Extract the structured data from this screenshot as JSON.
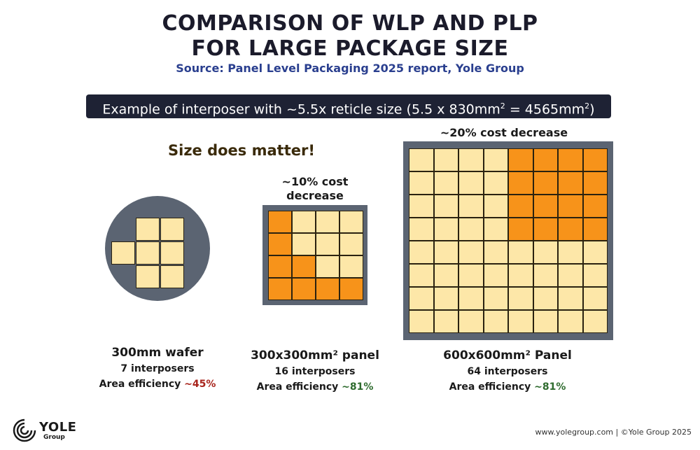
{
  "header": {
    "title_line1": "COMPARISON OF WLP AND PLP",
    "title_line2": "FOR LARGE PACKAGE SIZE",
    "source": "Source: Panel Level Packaging 2025 report, Yole Group"
  },
  "banner": {
    "text_pre": "Example of interposer with ~5.5x reticle size (5.5 x 830mm",
    "sup1": "2",
    "text_mid": "  = 4565mm",
    "sup2": "2",
    "text_post": ")"
  },
  "tagline": "Size does matter!",
  "notes": {
    "panel300": "~10% cost decrease",
    "panel600": "~20% cost decrease"
  },
  "items": [
    {
      "name": "300mm wafer",
      "count": "7 interposers",
      "eff_label": "Area efficiency ",
      "eff_value": "~45%"
    },
    {
      "name": "300x300mm² panel",
      "count": "16 interposers",
      "eff_label": "Area efficiency ",
      "eff_value": "~81%"
    },
    {
      "name": "600x600mm² Panel",
      "count": "64 interposers",
      "eff_label": "Area efficiency ",
      "eff_value": "~81%"
    }
  ],
  "colors": {
    "interposer_light": "#fde7a8",
    "interposer_highlight": "#f7931a",
    "substrate": "#5b6472",
    "efficiency_bad": "#a8241c",
    "efficiency_good": "#2e6b2e"
  },
  "footer": {
    "logo": "YOLE",
    "logo_sub": "Group",
    "logo_icon": "yole-spiral-icon",
    "copyright": "www.yolegroup.com | ©Yole Group 2025"
  }
}
